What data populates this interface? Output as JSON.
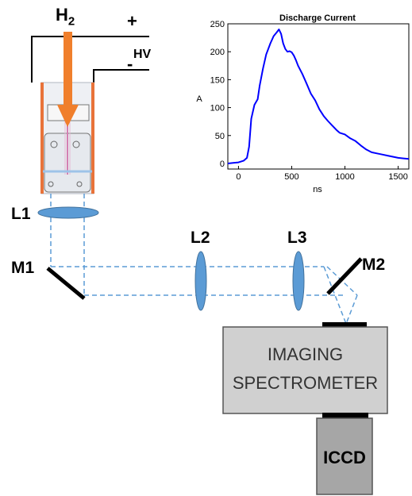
{
  "labels": {
    "h2": "H",
    "h2_sub": "2",
    "plus": "+",
    "minus": "-",
    "hv": "HV",
    "l1": "L1",
    "l2": "L2",
    "l3": "L3",
    "m1": "M1",
    "m2": "M2",
    "spectrometer_line1": "IMAGING",
    "spectrometer_line2": "SPECTROMETER",
    "iccd": "ICCD"
  },
  "colors": {
    "arrow": "#f07f2c",
    "electrode": "#e8733a",
    "lens_fill": "#5b9bd5",
    "lens_stroke": "#41719c",
    "beam": "#5b9bd5",
    "mirror": "#000000",
    "spectrometer_fill": "#d0d0d0",
    "iccd_fill": "#a6a6a6",
    "trace": "#0000ff"
  },
  "chart_data": {
    "type": "line",
    "title": "Discharge Current",
    "xlabel": "ns",
    "ylabel": "A",
    "xlim": [
      -100,
      1600
    ],
    "ylim": [
      -10,
      250
    ],
    "xticks": [
      0,
      500,
      1000,
      1500
    ],
    "yticks": [
      0,
      50,
      100,
      150,
      200,
      250
    ],
    "series": [
      {
        "x": [
          -100,
          -50,
          0,
          50,
          80,
          100,
          120,
          150,
          180,
          200,
          230,
          260,
          300,
          330,
          360,
          380,
          400,
          420,
          440,
          460,
          480,
          500,
          520,
          540,
          560,
          600,
          640,
          680,
          720,
          760,
          800,
          840,
          880,
          920,
          950,
          1000,
          1050,
          1100,
          1150,
          1200,
          1250,
          1300,
          1350,
          1400,
          1450,
          1500,
          1550,
          1600
        ],
        "y": [
          0,
          1,
          2,
          5,
          10,
          30,
          80,
          105,
          115,
          140,
          170,
          195,
          215,
          228,
          235,
          240,
          232,
          215,
          205,
          200,
          201,
          199,
          193,
          185,
          175,
          160,
          143,
          125,
          113,
          97,
          85,
          76,
          68,
          60,
          55,
          52,
          45,
          40,
          32,
          25,
          20,
          18,
          16,
          14,
          12,
          10,
          9,
          8
        ]
      }
    ]
  }
}
